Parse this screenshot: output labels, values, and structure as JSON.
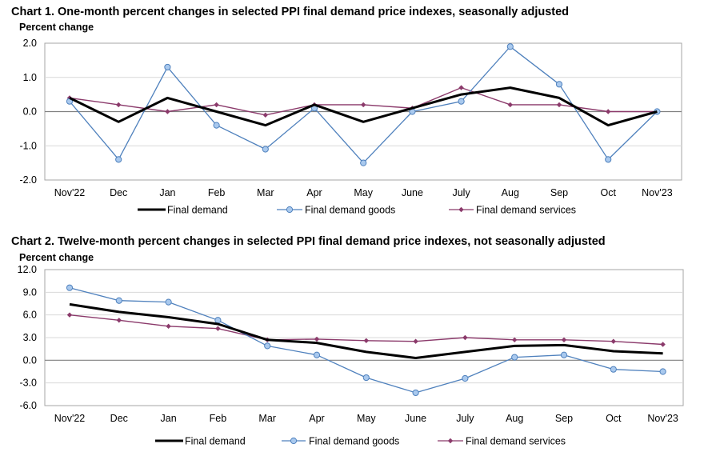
{
  "chart_data": [
    {
      "type": "line",
      "title": "Chart 1. One-month percent changes in selected PPI final demand price indexes, seasonally adjusted",
      "ylabel": "Percent change",
      "xlabel": "",
      "ylim": [
        -2.0,
        2.0
      ],
      "yticks": [
        "2.0",
        "1.0",
        "0.0",
        "-1.0",
        "-2.0"
      ],
      "ytick_values": [
        2.0,
        1.0,
        0.0,
        -1.0,
        -2.0
      ],
      "categories": [
        "Nov'22",
        "Dec",
        "Jan",
        "Feb",
        "Mar",
        "Apr",
        "May",
        "June",
        "July",
        "Aug",
        "Sep",
        "Oct",
        "Nov'23"
      ],
      "series": [
        {
          "name": "Final demand",
          "color": "#000000",
          "values": [
            0.4,
            -0.3,
            0.4,
            0.0,
            -0.4,
            0.2,
            -0.3,
            0.1,
            0.5,
            0.7,
            0.4,
            -0.4,
            0.0
          ]
        },
        {
          "name": "Final demand goods",
          "color": "#4f81bd",
          "values": [
            0.3,
            -1.4,
            1.3,
            -0.4,
            -1.1,
            0.1,
            -1.5,
            0.0,
            0.3,
            1.9,
            0.8,
            -1.4,
            0.0
          ]
        },
        {
          "name": "Final demand services",
          "color": "#8b3a6b",
          "values": [
            0.4,
            0.2,
            0.0,
            0.2,
            -0.1,
            0.2,
            0.2,
            0.1,
            0.7,
            0.2,
            0.2,
            0.0,
            0.0
          ]
        }
      ],
      "legend_position": "bottom"
    },
    {
      "type": "line",
      "title": "Chart 2. Twelve-month percent changes in selected PPI final demand price indexes, not seasonally adjusted",
      "ylabel": "Percent change",
      "xlabel": "",
      "ylim": [
        -6.0,
        12.0
      ],
      "yticks": [
        "12.0",
        "9.0",
        "6.0",
        "3.0",
        "0.0",
        "-3.0",
        "-6.0"
      ],
      "ytick_values": [
        12.0,
        9.0,
        6.0,
        3.0,
        0.0,
        -3.0,
        -6.0
      ],
      "categories": [
        "Nov'22",
        "Dec",
        "Jan",
        "Feb",
        "Mar",
        "Apr",
        "May",
        "June",
        "July",
        "Aug",
        "Sep",
        "Oct",
        "Nov'23"
      ],
      "series": [
        {
          "name": "Final demand",
          "color": "#000000",
          "values": [
            7.4,
            6.4,
            5.7,
            4.8,
            2.7,
            2.3,
            1.1,
            0.3,
            1.1,
            1.9,
            2.0,
            1.2,
            0.9
          ]
        },
        {
          "name": "Final demand goods",
          "color": "#4f81bd",
          "values": [
            9.6,
            7.9,
            7.7,
            5.3,
            1.9,
            0.7,
            -2.3,
            -4.3,
            -2.4,
            0.4,
            0.7,
            -1.2,
            -1.5
          ]
        },
        {
          "name": "Final demand services",
          "color": "#8b3a6b",
          "values": [
            6.0,
            5.3,
            4.5,
            4.2,
            2.7,
            2.8,
            2.6,
            2.5,
            3.0,
            2.7,
            2.7,
            2.5,
            2.1
          ]
        }
      ],
      "legend_position": "bottom"
    }
  ]
}
